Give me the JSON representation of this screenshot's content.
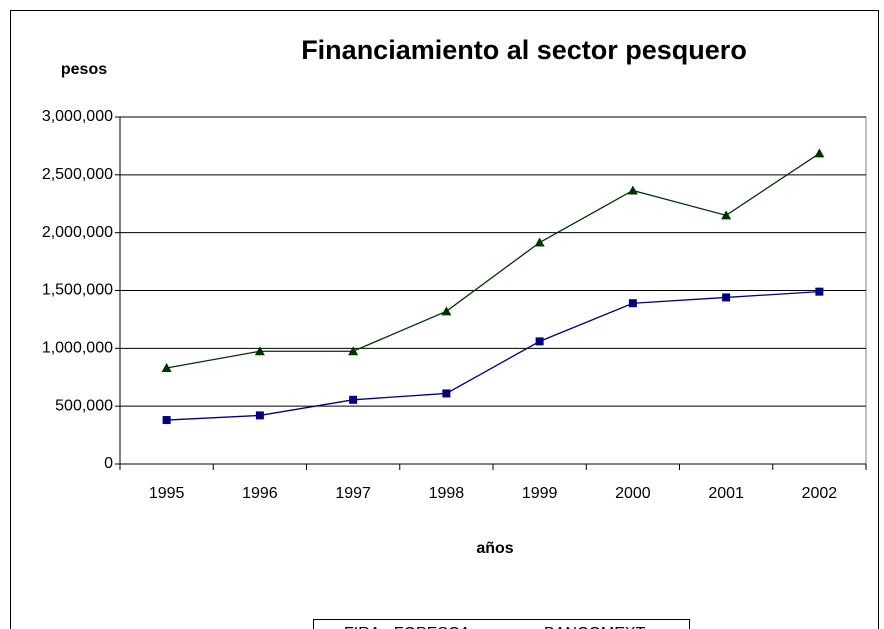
{
  "chart_data": {
    "type": "line",
    "title": "Financiamiento al sector pesquero",
    "y_label": "pesos",
    "x_label": "años",
    "categories": [
      "1995",
      "1996",
      "1997",
      "1998",
      "1999",
      "2000",
      "2001",
      "2002"
    ],
    "series": [
      {
        "name": "FIRA - FOPESCA",
        "color": "#000080",
        "legend_color": "#ff00ff",
        "marker": "square",
        "values": [
          380000,
          420000,
          555000,
          610000,
          1060000,
          1390000,
          1440000,
          1490000
        ]
      },
      {
        "name": "BANCOMEXT",
        "color": "#003300",
        "legend_color": "#ffff00",
        "marker": "triangle",
        "values": [
          830000,
          975000,
          975000,
          1320000,
          1915000,
          2365000,
          2150000,
          2685000
        ]
      }
    ],
    "ylim": [
      0,
      3000000
    ],
    "yticks": [
      0,
      {
        "value": 500000,
        "label": "500,000"
      },
      {
        "value": 1000000,
        "label": "1,000,000"
      },
      {
        "value": 1500000,
        "label": "1,500,000"
      },
      {
        "value": 2000000,
        "label": "2,000,000"
      },
      {
        "value": 2500000,
        "label": "2,500,000"
      },
      {
        "value": 3000000,
        "label": "3,000,000"
      }
    ],
    "grid": true
  }
}
